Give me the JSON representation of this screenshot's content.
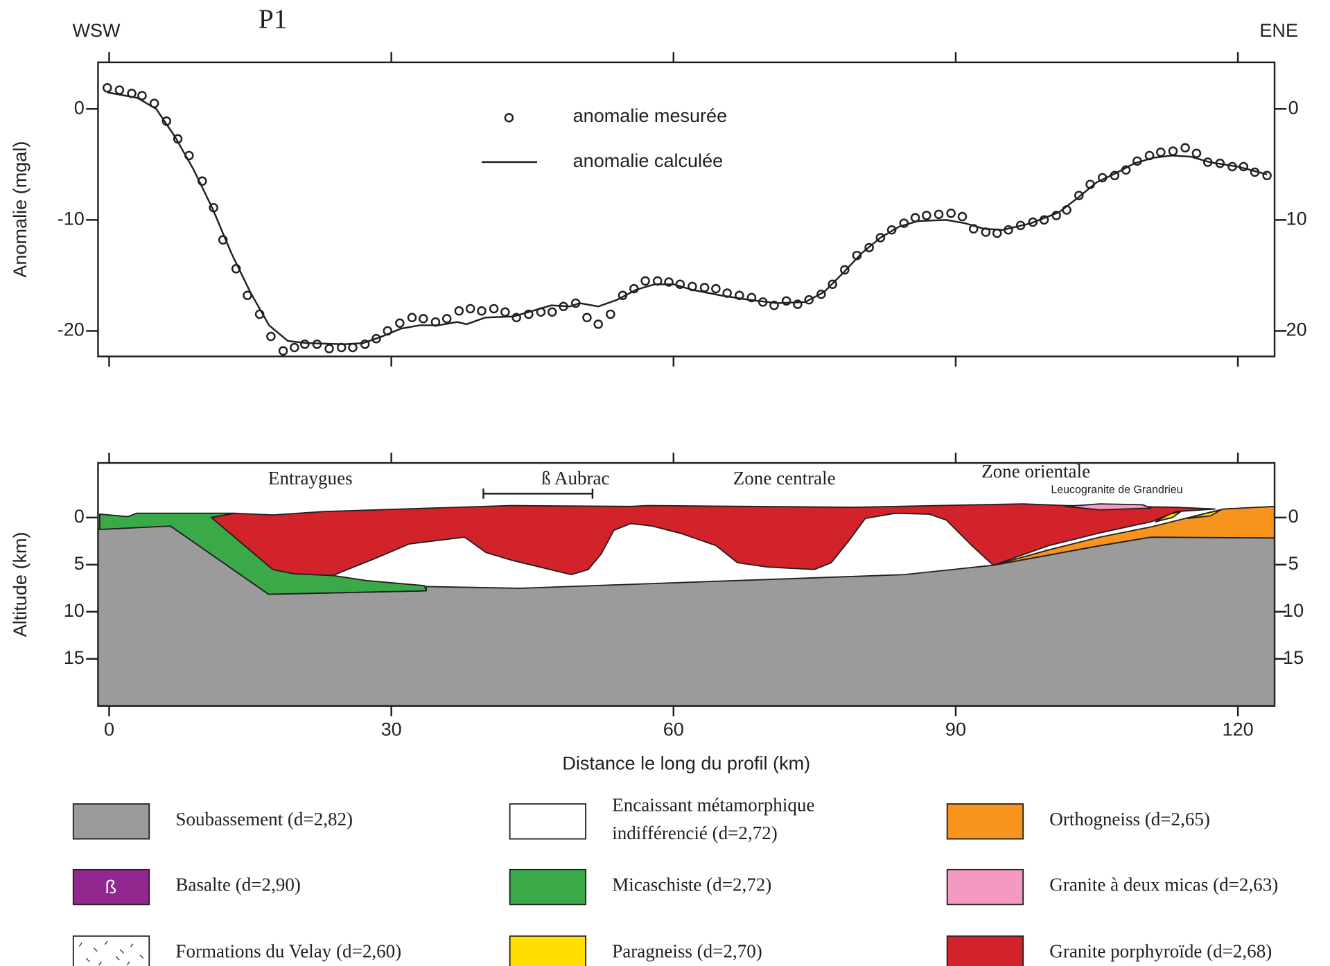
{
  "header": {
    "left": "WSW",
    "title": "P1",
    "right": "ENE"
  },
  "chart_data": [
    {
      "type": "scatter",
      "y_label": "Anomalie (mgal)",
      "xlim": [
        -1.18,
        123.9
      ],
      "ylim": [
        -22.3,
        4.2
      ],
      "xticks": [
        0,
        30,
        60,
        90,
        120
      ],
      "yticks": [
        -20,
        -10,
        0
      ],
      "series": [
        {
          "name": "anomalie mesurée",
          "color": "#231f20",
          "marker": "circle",
          "x": [
            -0.2,
            1.1,
            2.4,
            3.5,
            4.8,
            6.1,
            7.3,
            8.5,
            9.9,
            11.1,
            12.1,
            13.5,
            14.7,
            16.0,
            17.2,
            18.5,
            19.7,
            20.8,
            22.1,
            23.4,
            24.7,
            25.9,
            27.2,
            28.4,
            29.6,
            30.9,
            32.2,
            33.4,
            34.7,
            35.9,
            37.2,
            38.4,
            39.6,
            40.9,
            42.1,
            43.3,
            44.6,
            45.9,
            47.1,
            48.3,
            49.6,
            50.8,
            52.0,
            53.3,
            54.6,
            55.8,
            57.0,
            58.3,
            59.5,
            60.7,
            62.0,
            63.3,
            64.5,
            65.7,
            67.0,
            68.3,
            69.5,
            70.7,
            72.0,
            73.2,
            74.4,
            75.7,
            76.9,
            78.2,
            79.5,
            80.8,
            82.0,
            83.2,
            84.5,
            85.7,
            86.9,
            88.2,
            89.5,
            90.7,
            91.9,
            93.2,
            94.4,
            95.6,
            96.9,
            98.2,
            99.4,
            100.7,
            101.8,
            103.1,
            104.3,
            105.6,
            106.9,
            108.1,
            109.3,
            110.6,
            111.8,
            113.1,
            114.4,
            115.6,
            116.8,
            118.1,
            119.4,
            120.6,
            121.8,
            123.1
          ],
          "values": [
            1.9,
            1.7,
            1.4,
            1.2,
            0.5,
            -1.1,
            -2.7,
            -4.2,
            -6.5,
            -8.9,
            -11.8,
            -14.4,
            -16.8,
            -18.5,
            -20.5,
            -21.8,
            -21.5,
            -21.2,
            -21.2,
            -21.6,
            -21.5,
            -21.5,
            -21.2,
            -20.7,
            -20.0,
            -19.3,
            -18.8,
            -18.9,
            -19.2,
            -18.9,
            -18.2,
            -18.0,
            -18.2,
            -18.0,
            -18.3,
            -18.8,
            -18.5,
            -18.3,
            -18.3,
            -17.8,
            -17.5,
            -18.8,
            -19.4,
            -18.5,
            -16.8,
            -16.2,
            -15.5,
            -15.5,
            -15.6,
            -15.8,
            -16.0,
            -16.1,
            -16.2,
            -16.6,
            -16.8,
            -17.0,
            -17.4,
            -17.7,
            -17.3,
            -17.6,
            -17.2,
            -16.7,
            -15.8,
            -14.5,
            -13.2,
            -12.5,
            -11.6,
            -10.9,
            -10.3,
            -9.8,
            -9.6,
            -9.5,
            -9.4,
            -9.7,
            -10.8,
            -11.1,
            -11.2,
            -10.9,
            -10.5,
            -10.2,
            -10.0,
            -9.6,
            -9.1,
            -7.8,
            -6.8,
            -6.2,
            -6.0,
            -5.5,
            -4.7,
            -4.2,
            -3.9,
            -3.8,
            -3.5,
            -4.0,
            -4.8,
            -4.9,
            -5.2,
            -5.2,
            -5.7,
            -6.0
          ]
        },
        {
          "name": "anomalie calculée",
          "color": "#231f20",
          "marker": "line",
          "x": [
            -0.2,
            3,
            5,
            7,
            9,
            11,
            13,
            15,
            17,
            19,
            21,
            25,
            27,
            29,
            31,
            33,
            35,
            37,
            38,
            40,
            43,
            45,
            47,
            49,
            50,
            52,
            54,
            56,
            58,
            60,
            62,
            65,
            68,
            71,
            74,
            76,
            78,
            80,
            82,
            84,
            86,
            89,
            91,
            93,
            95,
            98,
            101,
            103,
            105,
            107,
            109,
            111,
            113,
            115,
            117,
            120,
            123.1
          ],
          "values": [
            1.5,
            1.0,
            0,
            -2.5,
            -5.5,
            -9,
            -13,
            -16.5,
            -19.5,
            -20.9,
            -21.1,
            -21.2,
            -21.1,
            -20.5,
            -19.8,
            -19.5,
            -19.5,
            -19.2,
            -19.4,
            -18.8,
            -18.7,
            -18.2,
            -17.7,
            -17.8,
            -17.5,
            -17.8,
            -17.2,
            -16.3,
            -15.8,
            -15.8,
            -16.3,
            -16.8,
            -17.2,
            -17.5,
            -17.4,
            -16.5,
            -14.8,
            -13.0,
            -11.6,
            -10.6,
            -10.1,
            -10.0,
            -10.3,
            -10.8,
            -10.9,
            -10.3,
            -9.3,
            -8.0,
            -6.6,
            -5.8,
            -4.9,
            -4.4,
            -4.2,
            -4.3,
            -4.8,
            -5.2,
            -5.9
          ]
        }
      ]
    },
    {
      "type": "section",
      "y_label": "Altitude (km)",
      "x_label": "Distance le long du profil (km)",
      "xlim": [
        -1.18,
        123.9
      ],
      "ylim": [
        -5.8,
        20
      ],
      "y_inverted": true,
      "xticks": [
        0,
        30,
        60,
        90,
        120
      ],
      "yticks": [
        0,
        5,
        10,
        15
      ],
      "annotations": [
        "Entraygues",
        "ß Aubrac",
        "Zone centrale",
        "Zone orientale",
        "Leucogranite de Grandrieu"
      ]
    }
  ],
  "legend": [
    {
      "label": [
        "Soubassement (d=2,82)"
      ],
      "color": "#9b9b9b"
    },
    {
      "label": [
        "Encaissant métamorphique",
        "indifférencié (d=2,72)"
      ],
      "color": "#ffffff"
    },
    {
      "label": [
        "Orthogneiss (d=2,65)"
      ],
      "color": "#f7941d"
    },
    {
      "label": [
        "Basalte (d=2,90)"
      ],
      "color": "#92278f",
      "symbol": "ß"
    },
    {
      "label": [
        "Micaschiste (d=2,72)"
      ],
      "color": "#3aaa49"
    },
    {
      "label": [
        "Granite à deux micas (d=2,63)"
      ],
      "color": "#f49ac1"
    },
    {
      "label": [
        "Formations du Velay (d=2,60)"
      ],
      "color": "#ffffff",
      "pattern": "dashes"
    },
    {
      "label": [
        "Paragneiss (d=2,70)"
      ],
      "color": "#ffde00"
    },
    {
      "label": [
        "Granite porphyroïde (d=2,68)"
      ],
      "color": "#d2232a"
    }
  ]
}
